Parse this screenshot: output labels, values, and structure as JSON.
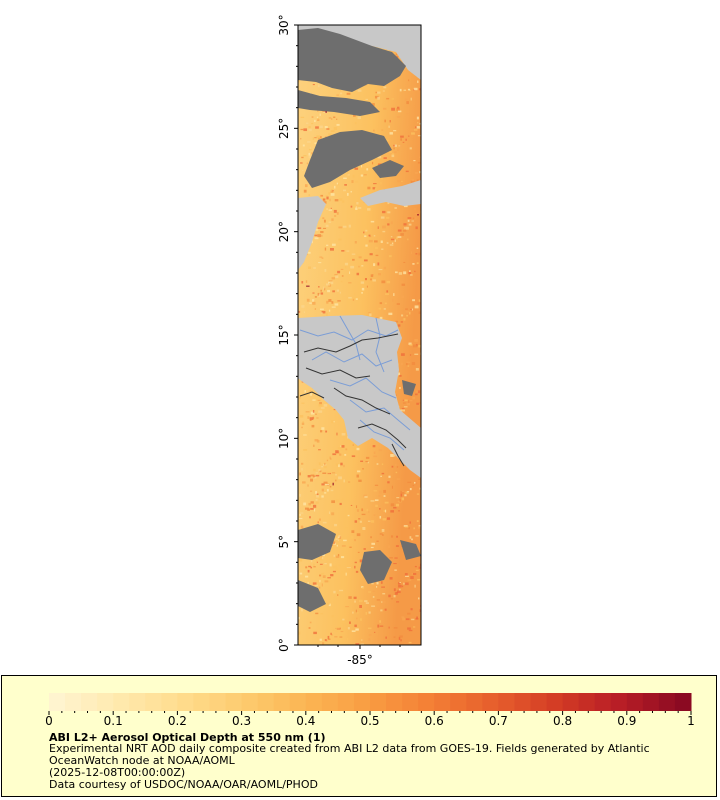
{
  "map": {
    "lat_ticks": [
      "0°",
      "5°",
      "10°",
      "15°",
      "20°",
      "25°",
      "30°"
    ],
    "lon_ticks": [
      "-85°"
    ],
    "lat_range": [
      0,
      30
    ],
    "colors": {
      "ocean_low": "#ffe7a8",
      "ocean_mid": "#fcc15f",
      "ocean_high": "#ef6b3a",
      "ocean_extreme": "#8b0021",
      "land": "#c8c8c8",
      "cloud_no_data": "#6e6e6e",
      "borders": "#333333",
      "rivers": "#7b9dd6"
    }
  },
  "legend": {
    "tick_labels": [
      "0",
      "0.1",
      "0.2",
      "0.3",
      "0.4",
      "0.5",
      "0.6",
      "0.7",
      "0.8",
      "0.9",
      "1"
    ],
    "range": [
      0,
      1
    ],
    "colors": [
      "#fff4cf",
      "#ffe9ad",
      "#ffdc8d",
      "#fdcb6e",
      "#fbb553",
      "#f99c42",
      "#f37e35",
      "#e65e2c",
      "#d33b25",
      "#b71d26",
      "#8b0a22"
    ],
    "title": "ABI L2+ Aerosol Optical Depth at 550 nm (1)",
    "description": "Experimental NRT AOD daily composite created from ABI L2 data from GOES-19. Fields generated by Atlantic OceanWatch node at NOAA/AOML",
    "time": "(2025-12-08T00:00:00Z)",
    "credit": "Data courtesy of USDOC/NOAA/OAR/AOML/PHOD"
  }
}
